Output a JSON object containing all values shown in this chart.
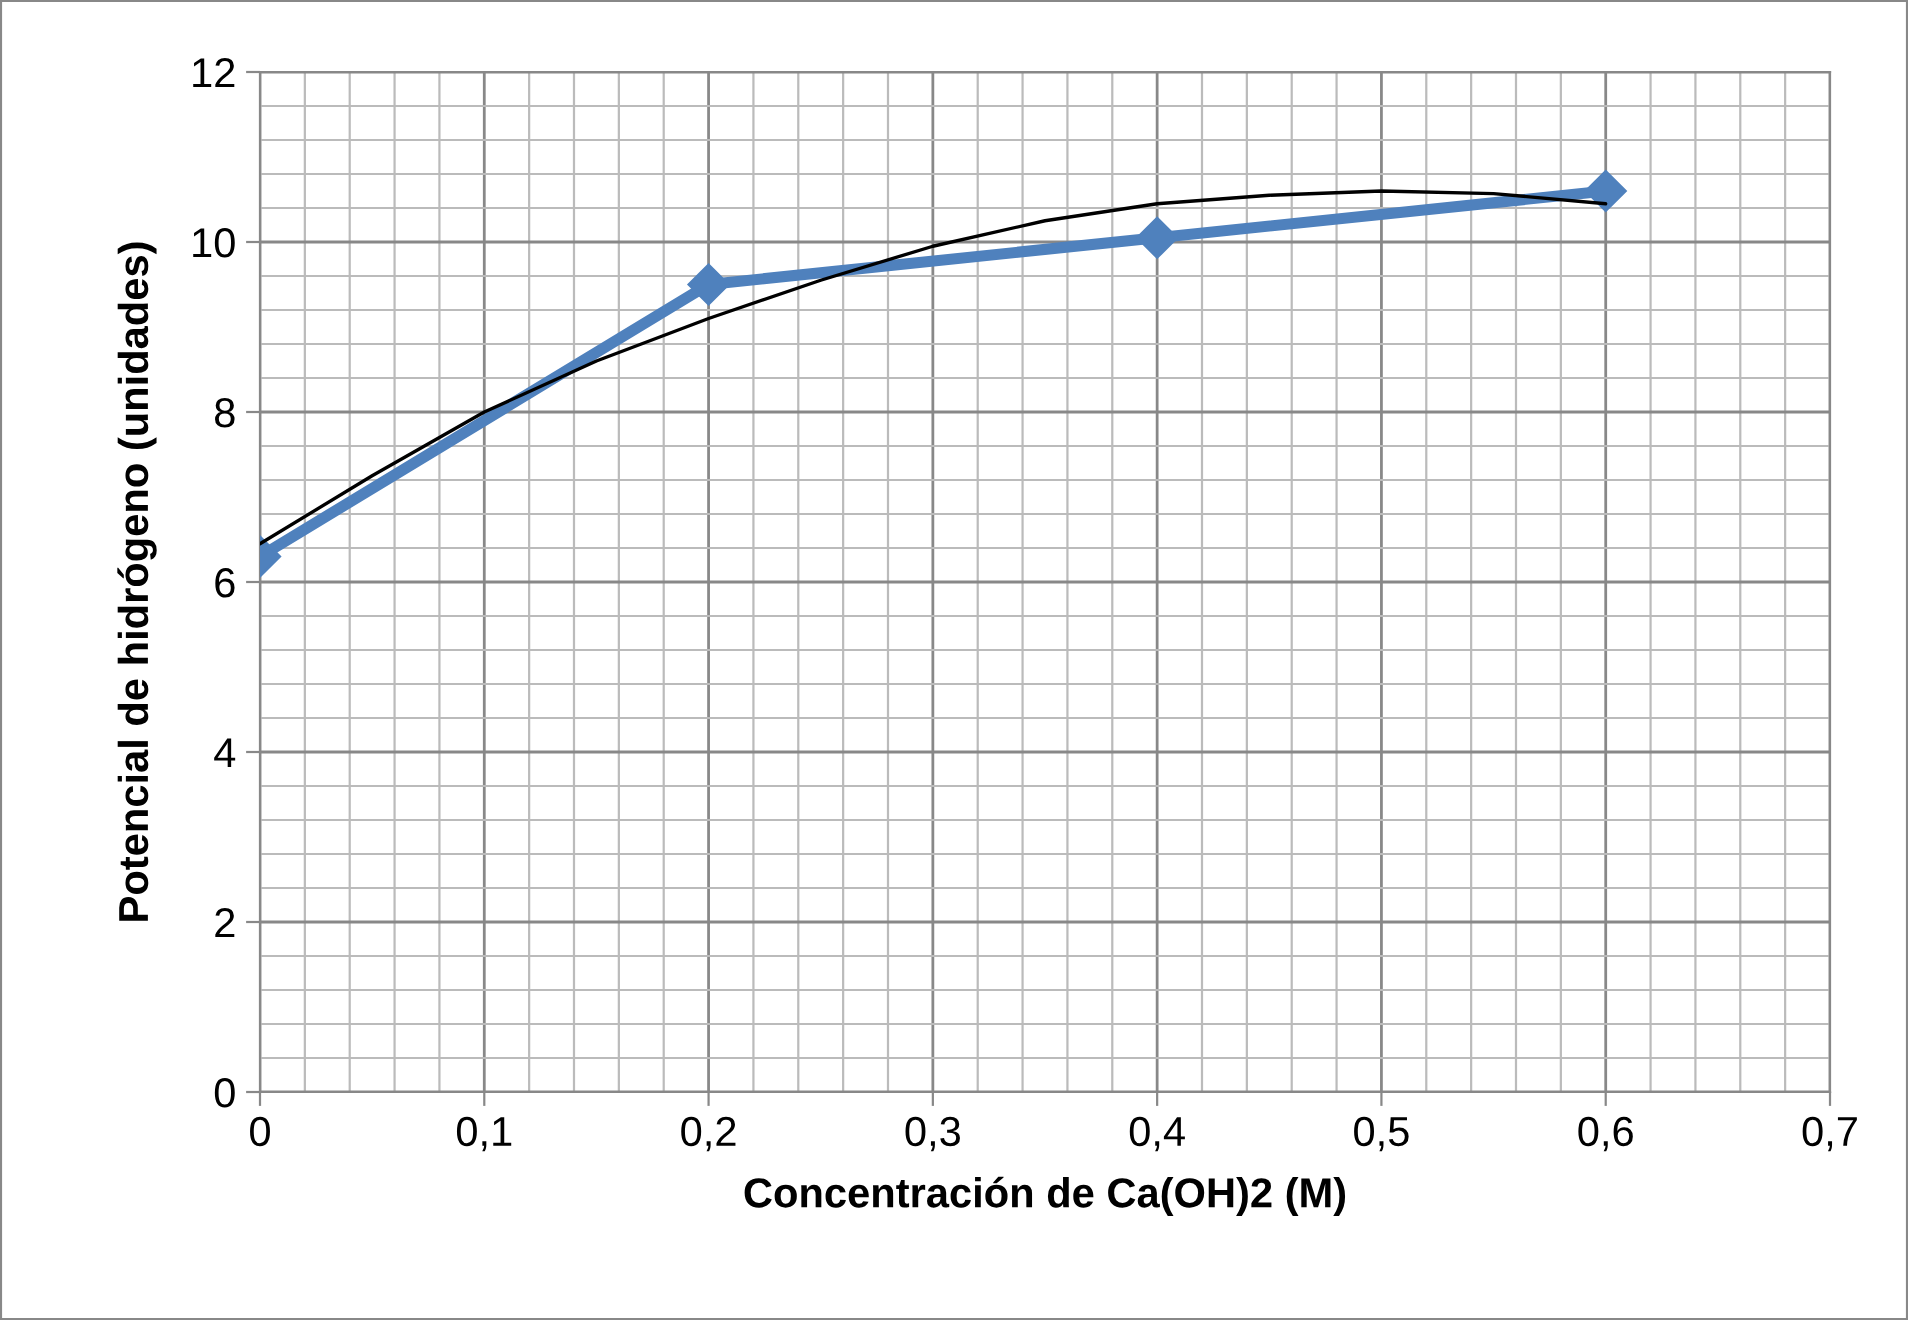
{
  "chart_data": {
    "type": "line",
    "xlabel": "Concentración de Ca(OH)2 (M)",
    "ylabel": "Potencial de hidrógeno (unidades)",
    "xlim": [
      0,
      0.7
    ],
    "xticks": [
      {
        "value": 0,
        "label": "0"
      },
      {
        "value": 0.1,
        "label": "0,1"
      },
      {
        "value": 0.2,
        "label": "0,2"
      },
      {
        "value": 0.3,
        "label": "0,3"
      },
      {
        "value": 0.4,
        "label": "0,4"
      },
      {
        "value": 0.5,
        "label": "0,5"
      },
      {
        "value": 0.6,
        "label": "0,6"
      },
      {
        "value": 0.7,
        "label": "0,7"
      }
    ],
    "ylim": [
      0,
      12
    ],
    "yticks": [
      0,
      2,
      4,
      6,
      8,
      10,
      12
    ],
    "grid": true,
    "series": [
      {
        "color": "#4f81bd",
        "marker": "diamond",
        "line_style": "solid",
        "x": [
          0,
          0.2,
          0.4,
          0.6
        ],
        "values": [
          6.3,
          9.5,
          10.05,
          10.6
        ]
      },
      {
        "color": "#000000",
        "marker": "none",
        "line_style": "solid",
        "x": [
          0,
          0.05,
          0.1,
          0.15,
          0.2,
          0.25,
          0.3,
          0.35,
          0.4,
          0.45,
          0.5,
          0.55,
          0.6
        ],
        "values": [
          6.45,
          7.25,
          8.0,
          8.6,
          9.1,
          9.55,
          9.95,
          10.25,
          10.45,
          10.55,
          10.6,
          10.57,
          10.45
        ]
      }
    ]
  }
}
